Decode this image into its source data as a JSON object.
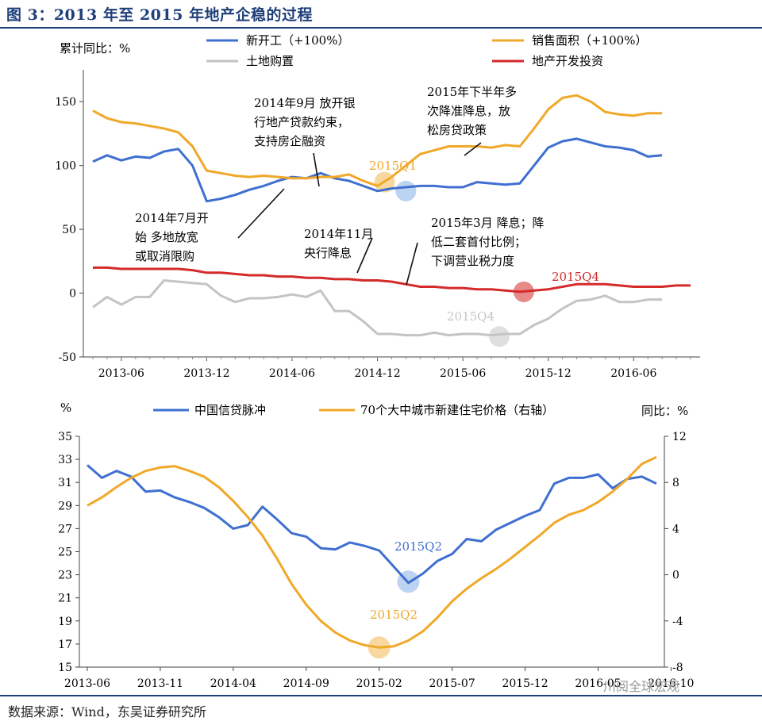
{
  "figure_title": "图 3：2013 年至 2015 年地产企稳的过程",
  "source_text": "数据来源：Wind，东吴证券研究所",
  "watermark_text": "川阅全球宏观",
  "chart_data": [
    {
      "type": "line",
      "ylabel": "累计同比：%",
      "ylim": [
        -50,
        175
      ],
      "yticks": [
        -50,
        0,
        50,
        100,
        150
      ],
      "x_tick_labels": [
        "2013-06",
        "2013-12",
        "2014-06",
        "2014-12",
        "2015-06",
        "2015-12",
        "2016-06"
      ],
      "x_months": [
        "2013-04",
        "2013-05",
        "2013-06",
        "2013-07",
        "2013-08",
        "2013-09",
        "2013-10",
        "2013-11",
        "2013-12",
        "2014-01",
        "2014-02",
        "2014-03",
        "2014-04",
        "2014-05",
        "2014-06",
        "2014-07",
        "2014-08",
        "2014-09",
        "2014-10",
        "2014-11",
        "2014-12",
        "2015-01",
        "2015-02",
        "2015-03",
        "2015-04",
        "2015-05",
        "2015-06",
        "2015-07",
        "2015-08",
        "2015-09",
        "2015-10",
        "2015-11",
        "2015-12",
        "2016-01",
        "2016-02",
        "2016-03",
        "2016-04",
        "2016-05",
        "2016-06",
        "2016-07",
        "2016-08",
        "2016-09",
        "2016-10"
      ],
      "legend_position": "top",
      "series": [
        {
          "name": "新开工（+100%）",
          "color": "#3f6fd0",
          "values": [
            103,
            108,
            104,
            107,
            106,
            111,
            113,
            100,
            72,
            74,
            77,
            81,
            84,
            88,
            91,
            90,
            94,
            90,
            88,
            84,
            80,
            82,
            83,
            84,
            84,
            83,
            83,
            87,
            86,
            85,
            86,
            100,
            114,
            119,
            121,
            118,
            115,
            114,
            112,
            107,
            108,
            null,
            null
          ]
        },
        {
          "name": "销售面积（+100%）",
          "color": "#f0a828",
          "values": [
            143,
            137,
            134,
            133,
            131,
            129,
            126,
            115,
            96,
            94,
            92,
            91,
            92,
            91,
            90,
            90,
            91,
            91,
            93,
            88,
            84,
            91,
            100,
            109,
            112,
            115,
            115,
            115,
            114,
            116,
            115,
            129,
            144,
            153,
            155,
            150,
            142,
            140,
            139,
            141,
            141,
            null,
            null
          ]
        },
        {
          "name": "土地购置",
          "color": "#c4c4c4",
          "values": [
            -11,
            -3,
            -9,
            -3,
            -3,
            10,
            9,
            8,
            7,
            -2,
            -7,
            -4,
            -4,
            -3,
            -1,
            -3,
            2,
            -14,
            -14,
            -22,
            -32,
            -32,
            -33,
            -33,
            -31,
            -33,
            -32,
            -32,
            -33,
            -32,
            -32,
            -25,
            -20,
            -12,
            -6,
            -5,
            -2,
            -7,
            -7,
            -5,
            -5,
            null,
            null
          ]
        },
        {
          "name": "地产开发投资",
          "color": "#d42a2a",
          "values": [
            20,
            20,
            19,
            19,
            19,
            19,
            19,
            18,
            16,
            16,
            15,
            14,
            14,
            13,
            13,
            12,
            12,
            11,
            11,
            10,
            10,
            9,
            7,
            5,
            5,
            4,
            4,
            3,
            3,
            2,
            1,
            2,
            3,
            5,
            7,
            7,
            7,
            6,
            5,
            5,
            5,
            6,
            6
          ]
        }
      ],
      "annotations": [
        {
          "text": "2014年9月 放开银行地产贷款约束，支持房企融资",
          "lines": [
            "2014年9月 放开银",
            "行地产贷款约束，",
            "支持房企融资"
          ]
        },
        {
          "text": "2015年下半年多次降准降息，放松房贷政策",
          "lines": [
            "2015年下半年多",
            "次降准降息，放",
            "松房贷政策"
          ]
        },
        {
          "text": "2014年7月开始 多地放宽或取消限购",
          "lines": [
            "2014年7月开",
            "始 多地放宽",
            "或取消限购"
          ]
        },
        {
          "text": "2014年11月央行降息",
          "lines": [
            "2014年11月",
            "央行降息"
          ]
        },
        {
          "text": "2015年3月 降息；降低二套首付比例；下调营业税力度",
          "lines": [
            "2015年3月 降息；降",
            "低二套首付比例；",
            "下调营业税力度"
          ]
        }
      ],
      "markers": [
        {
          "label": "2015Q1",
          "color": "#f0a828"
        },
        {
          "label": "2015Q4",
          "color": "#d42a2a"
        },
        {
          "label": "2015Q4",
          "color": "#c4c4c4"
        }
      ]
    },
    {
      "type": "line",
      "ylabel": "%",
      "ylabel_right": "同比：%",
      "ylim": [
        15,
        35
      ],
      "yticks": [
        15,
        17,
        19,
        21,
        23,
        25,
        27,
        29,
        31,
        33,
        35
      ],
      "ylim_right": [
        -8,
        12
      ],
      "yticks_right": [
        -8,
        -4,
        0,
        4,
        8,
        12
      ],
      "x_tick_labels": [
        "2013-06",
        "2013-11",
        "2014-04",
        "2014-09",
        "2015-02",
        "2015-07",
        "2015-12",
        "2016-05",
        "2016-10"
      ],
      "legend_position": "top",
      "series": [
        {
          "name": "中国信贷脉冲",
          "axis": "left",
          "color": "#3f6fd0",
          "points": [
            [
              0,
              32.5
            ],
            [
              1,
              31.4
            ],
            [
              2,
              32.0
            ],
            [
              3,
              31.5
            ],
            [
              4,
              30.2
            ],
            [
              5,
              30.3
            ],
            [
              6,
              29.7
            ],
            [
              7,
              29.3
            ],
            [
              8,
              28.8
            ],
            [
              9,
              28.0
            ],
            [
              10,
              27.0
            ],
            [
              11,
              27.3
            ],
            [
              12,
              28.9
            ],
            [
              13,
              27.8
            ],
            [
              14,
              26.6
            ],
            [
              15,
              26.3
            ],
            [
              16,
              25.3
            ],
            [
              17,
              25.2
            ],
            [
              18,
              25.8
            ],
            [
              19,
              25.5
            ],
            [
              20,
              25.1
            ],
            [
              21,
              23.7
            ],
            [
              22,
              22.3
            ],
            [
              23,
              23.1
            ],
            [
              24,
              24.2
            ],
            [
              25,
              24.8
            ],
            [
              26,
              26.1
            ],
            [
              27,
              25.9
            ],
            [
              28,
              26.9
            ],
            [
              29,
              27.5
            ],
            [
              30,
              28.1
            ],
            [
              31,
              28.6
            ],
            [
              32,
              30.9
            ],
            [
              33,
              31.4
            ],
            [
              34,
              31.4
            ],
            [
              35,
              31.7
            ],
            [
              36,
              30.5
            ],
            [
              37,
              31.3
            ],
            [
              38,
              31.5
            ],
            [
              39,
              30.9
            ]
          ]
        },
        {
          "name": "70个大中城市新建住宅价格（右轴）",
          "axis": "right",
          "color": "#f0a828",
          "points": [
            [
              0,
              6.0
            ],
            [
              1,
              6.7
            ],
            [
              2,
              7.6
            ],
            [
              3,
              8.4
            ],
            [
              4,
              9.0
            ],
            [
              5,
              9.3
            ],
            [
              6,
              9.4
            ],
            [
              7,
              9.0
            ],
            [
              8,
              8.5
            ],
            [
              9,
              7.6
            ],
            [
              10,
              6.4
            ],
            [
              11,
              5.0
            ],
            [
              12,
              3.4
            ],
            [
              13,
              1.4
            ],
            [
              14,
              -0.8
            ],
            [
              15,
              -2.6
            ],
            [
              16,
              -4.0
            ],
            [
              17,
              -5.0
            ],
            [
              18,
              -5.7
            ],
            [
              19,
              -6.1
            ],
            [
              20,
              -6.3
            ],
            [
              21,
              -6.2
            ],
            [
              22,
              -5.7
            ],
            [
              23,
              -4.9
            ],
            [
              24,
              -3.7
            ],
            [
              25,
              -2.3
            ],
            [
              26,
              -1.2
            ],
            [
              27,
              -0.3
            ],
            [
              28,
              0.5
            ],
            [
              29,
              1.4
            ],
            [
              30,
              2.4
            ],
            [
              31,
              3.4
            ],
            [
              32,
              4.5
            ],
            [
              33,
              5.2
            ],
            [
              34,
              5.6
            ],
            [
              35,
              6.3
            ],
            [
              36,
              7.2
            ],
            [
              37,
              8.3
            ],
            [
              38,
              9.6
            ],
            [
              39,
              10.2
            ]
          ]
        }
      ],
      "markers": [
        {
          "label": "2015Q2",
          "color": "#3f6fd0"
        },
        {
          "label": "2015Q2",
          "color": "#f0a828"
        }
      ]
    }
  ]
}
